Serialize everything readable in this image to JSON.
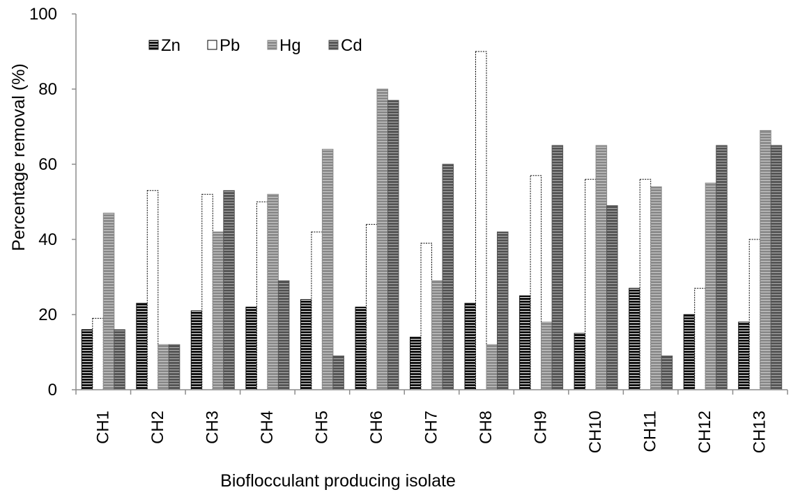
{
  "chart_data": {
    "type": "bar",
    "title": "",
    "xlabel": "Bioflocculant producing isolate",
    "ylabel": "Percentage removal (%)",
    "ylim": [
      0,
      100
    ],
    "yticks": [
      0,
      20,
      40,
      60,
      80,
      100
    ],
    "grid": false,
    "legend_position": "top-left",
    "categories": [
      "CH1",
      "CH2",
      "CH3",
      "CH4",
      "CH5",
      "CH6",
      "CH7",
      "CH8",
      "CH9",
      "CH10",
      "CH11",
      "CH12",
      "CH13"
    ],
    "series": [
      {
        "name": "Zn",
        "fill": "#111111",
        "stripe": "#ffffff",
        "border": "#111111",
        "values": [
          16,
          23,
          21,
          22,
          24,
          22,
          14,
          23,
          25,
          15,
          27,
          20,
          18
        ]
      },
      {
        "name": "Pb",
        "fill": "#ffffff",
        "stripe": "#ffffff",
        "border": "#000000",
        "values": [
          19,
          53,
          52,
          50,
          42,
          44,
          39,
          90,
          57,
          56,
          56,
          27,
          40
        ]
      },
      {
        "name": "Hg",
        "fill": "#8a8a8a",
        "stripe": "#d0d0d0",
        "border": "#8a8a8a",
        "values": [
          47,
          12,
          42,
          52,
          64,
          80,
          29,
          12,
          18,
          65,
          54,
          55,
          69
        ]
      },
      {
        "name": "Cd",
        "fill": "#555555",
        "stripe": "#b0b0b0",
        "border": "#555555",
        "values": [
          16,
          12,
          53,
          29,
          9,
          77,
          60,
          42,
          65,
          49,
          9,
          65,
          65
        ]
      }
    ]
  }
}
